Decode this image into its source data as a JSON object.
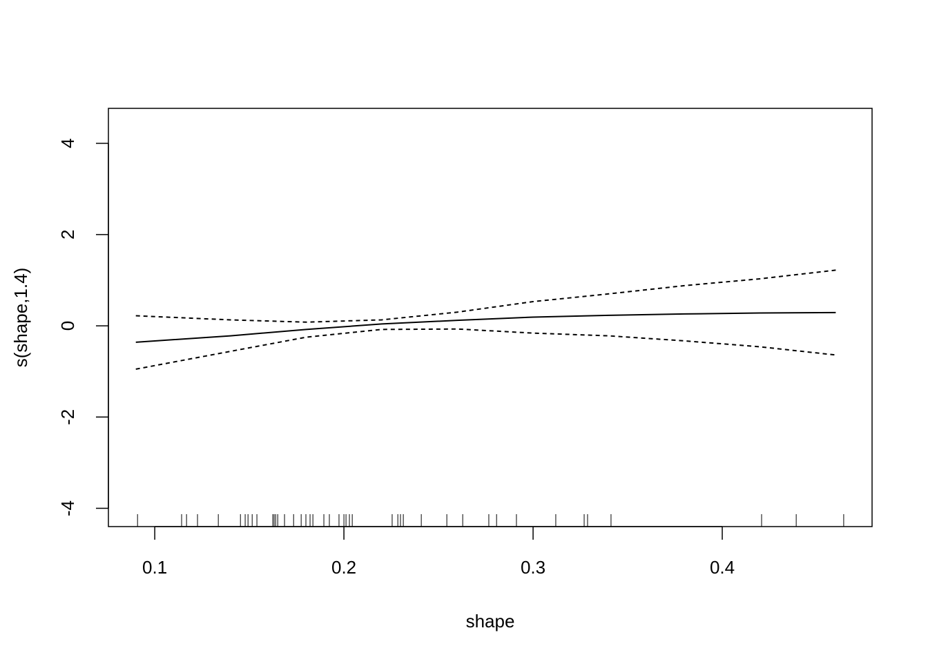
{
  "chart_data": {
    "type": "line",
    "xlabel": "shape",
    "ylabel": "s(shape,1.4)",
    "x": [
      0.09,
      0.14,
      0.18,
      0.22,
      0.26,
      0.3,
      0.34,
      0.38,
      0.42,
      0.46
    ],
    "series": [
      {
        "color": "#000000",
        "dashed": false,
        "values": [
          -0.36,
          -0.22,
          -0.08,
          0.04,
          0.12,
          0.19,
          0.23,
          0.26,
          0.28,
          0.29
        ]
      },
      {
        "color": "#000000",
        "dashed": true,
        "values": [
          0.22,
          0.13,
          0.08,
          0.13,
          0.3,
          0.53,
          0.7,
          0.88,
          1.03,
          1.22
        ]
      },
      {
        "color": "#000000",
        "dashed": true,
        "values": [
          -0.95,
          -0.56,
          -0.25,
          -0.08,
          -0.07,
          -0.16,
          -0.22,
          -0.33,
          -0.46,
          -0.64
        ]
      }
    ],
    "rug": [
      0.0909,
      0.1142,
      0.1168,
      0.1226,
      0.1336,
      0.1453,
      0.1478,
      0.1493,
      0.1515,
      0.154,
      0.1624,
      0.1631,
      0.1639,
      0.165,
      0.1686,
      0.1734,
      0.1774,
      0.1799,
      0.1821,
      0.1836,
      0.1894,
      0.1923,
      0.1974,
      0.2,
      0.2011,
      0.2029,
      0.2044,
      0.2255,
      0.2285,
      0.2299,
      0.2314,
      0.2409,
      0.2544,
      0.2628,
      0.2766,
      0.2807,
      0.2912,
      0.312,
      0.327,
      0.3288,
      0.3412,
      0.4208,
      0.4391,
      0.4642
    ],
    "xlim": [
      0.0755,
      0.4792
    ],
    "ylim": [
      -4.4,
      4.765
    ],
    "xticks": [
      0.1,
      0.2,
      0.3,
      0.4
    ],
    "yticks": [
      -4,
      -2,
      0,
      2,
      4
    ]
  }
}
